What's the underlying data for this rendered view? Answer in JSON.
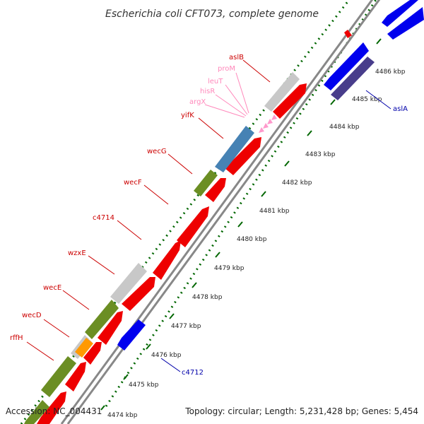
{
  "title": "Escherichia coli CFT073, complete genome",
  "footer": {
    "accession": "Accession: NC_004431",
    "topology": "Topology: circular; Length: 5,231,428 bp; Genes: 5,454"
  },
  "scale_labels": [
    "4474 kbp",
    "4475 kbp",
    "4476 kbp",
    "4477 kbp",
    "4478 kbp",
    "4479 kbp",
    "4480 kbp",
    "4481 kbp",
    "4482 kbp",
    "4483 kbp",
    "4484 kbp",
    "4485 kbp",
    "4486 kbp"
  ],
  "gene_labels": {
    "aslB": "aslB",
    "proM": "proM",
    "leuT": "leuT",
    "hisR": "hisR",
    "argX": "argX",
    "yifK": "yifK",
    "wecG": "wecG",
    "wecF": "wecF",
    "c4714": "c4714",
    "wzxE": "wzxE",
    "wecE": "wecE",
    "wecD": "wecD",
    "rffH": "rffH",
    "aslA": "aslA",
    "c4712": "c4712"
  },
  "colors": {
    "forward_cds": "#ff0000",
    "reverse_cds": "#0000ff",
    "rna": "#ff99cc",
    "label_forward": "#cc0000",
    "label_reverse": "#0000aa",
    "label_rna": "#ff88bb",
    "backbone": "#888888",
    "tick": "#006600",
    "other_gray": "#c8c8c8",
    "other_green": "#6b8e23",
    "other_blue": "#4682b4",
    "other_orange": "#ff9900",
    "other_purple": "#483d8b"
  }
}
